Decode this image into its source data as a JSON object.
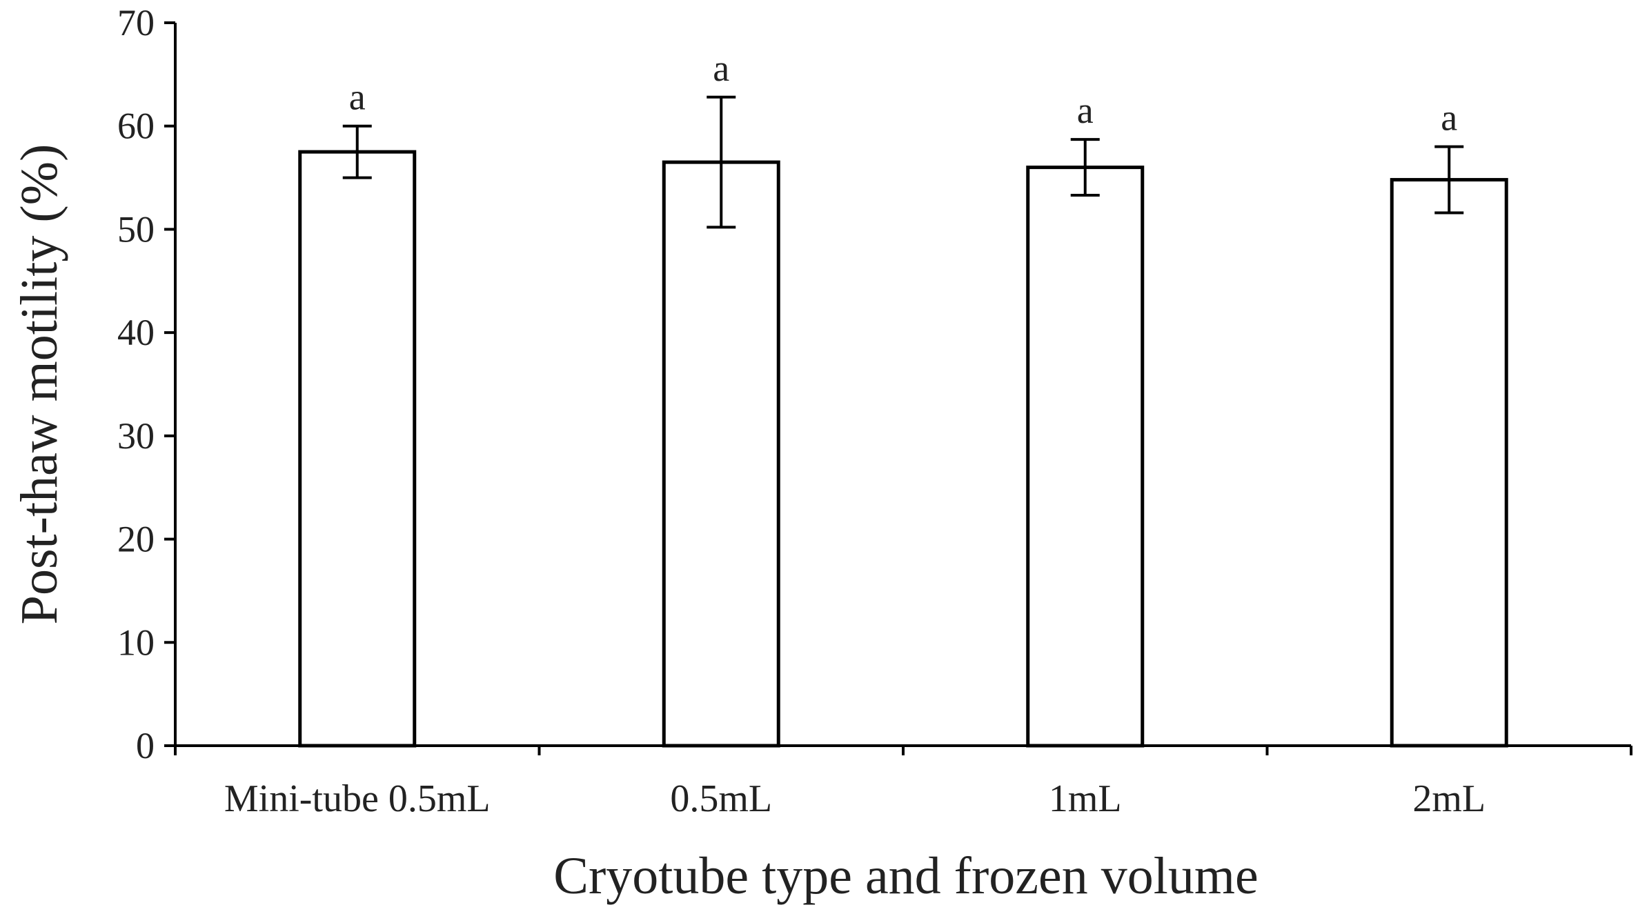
{
  "chart_data": {
    "type": "bar",
    "title": "",
    "xlabel": "Cryotube type and frozen  volume",
    "ylabel": "Post-thaw motility (%)",
    "ylim": [
      0,
      70
    ],
    "yticks": [
      0,
      10,
      20,
      30,
      40,
      50,
      60,
      70
    ],
    "categories": [
      "Mini-tube 0.5mL",
      "0.5mL",
      "1mL",
      "2mL"
    ],
    "values": [
      57.5,
      56.5,
      56.0,
      54.8
    ],
    "errors": [
      2.5,
      6.3,
      2.7,
      3.2
    ],
    "significance": [
      "a",
      "a",
      "a",
      "a"
    ],
    "grid": false,
    "legend": "none",
    "colors": {
      "bar_fill": "#ffffff",
      "bar_stroke": "#000000"
    }
  }
}
